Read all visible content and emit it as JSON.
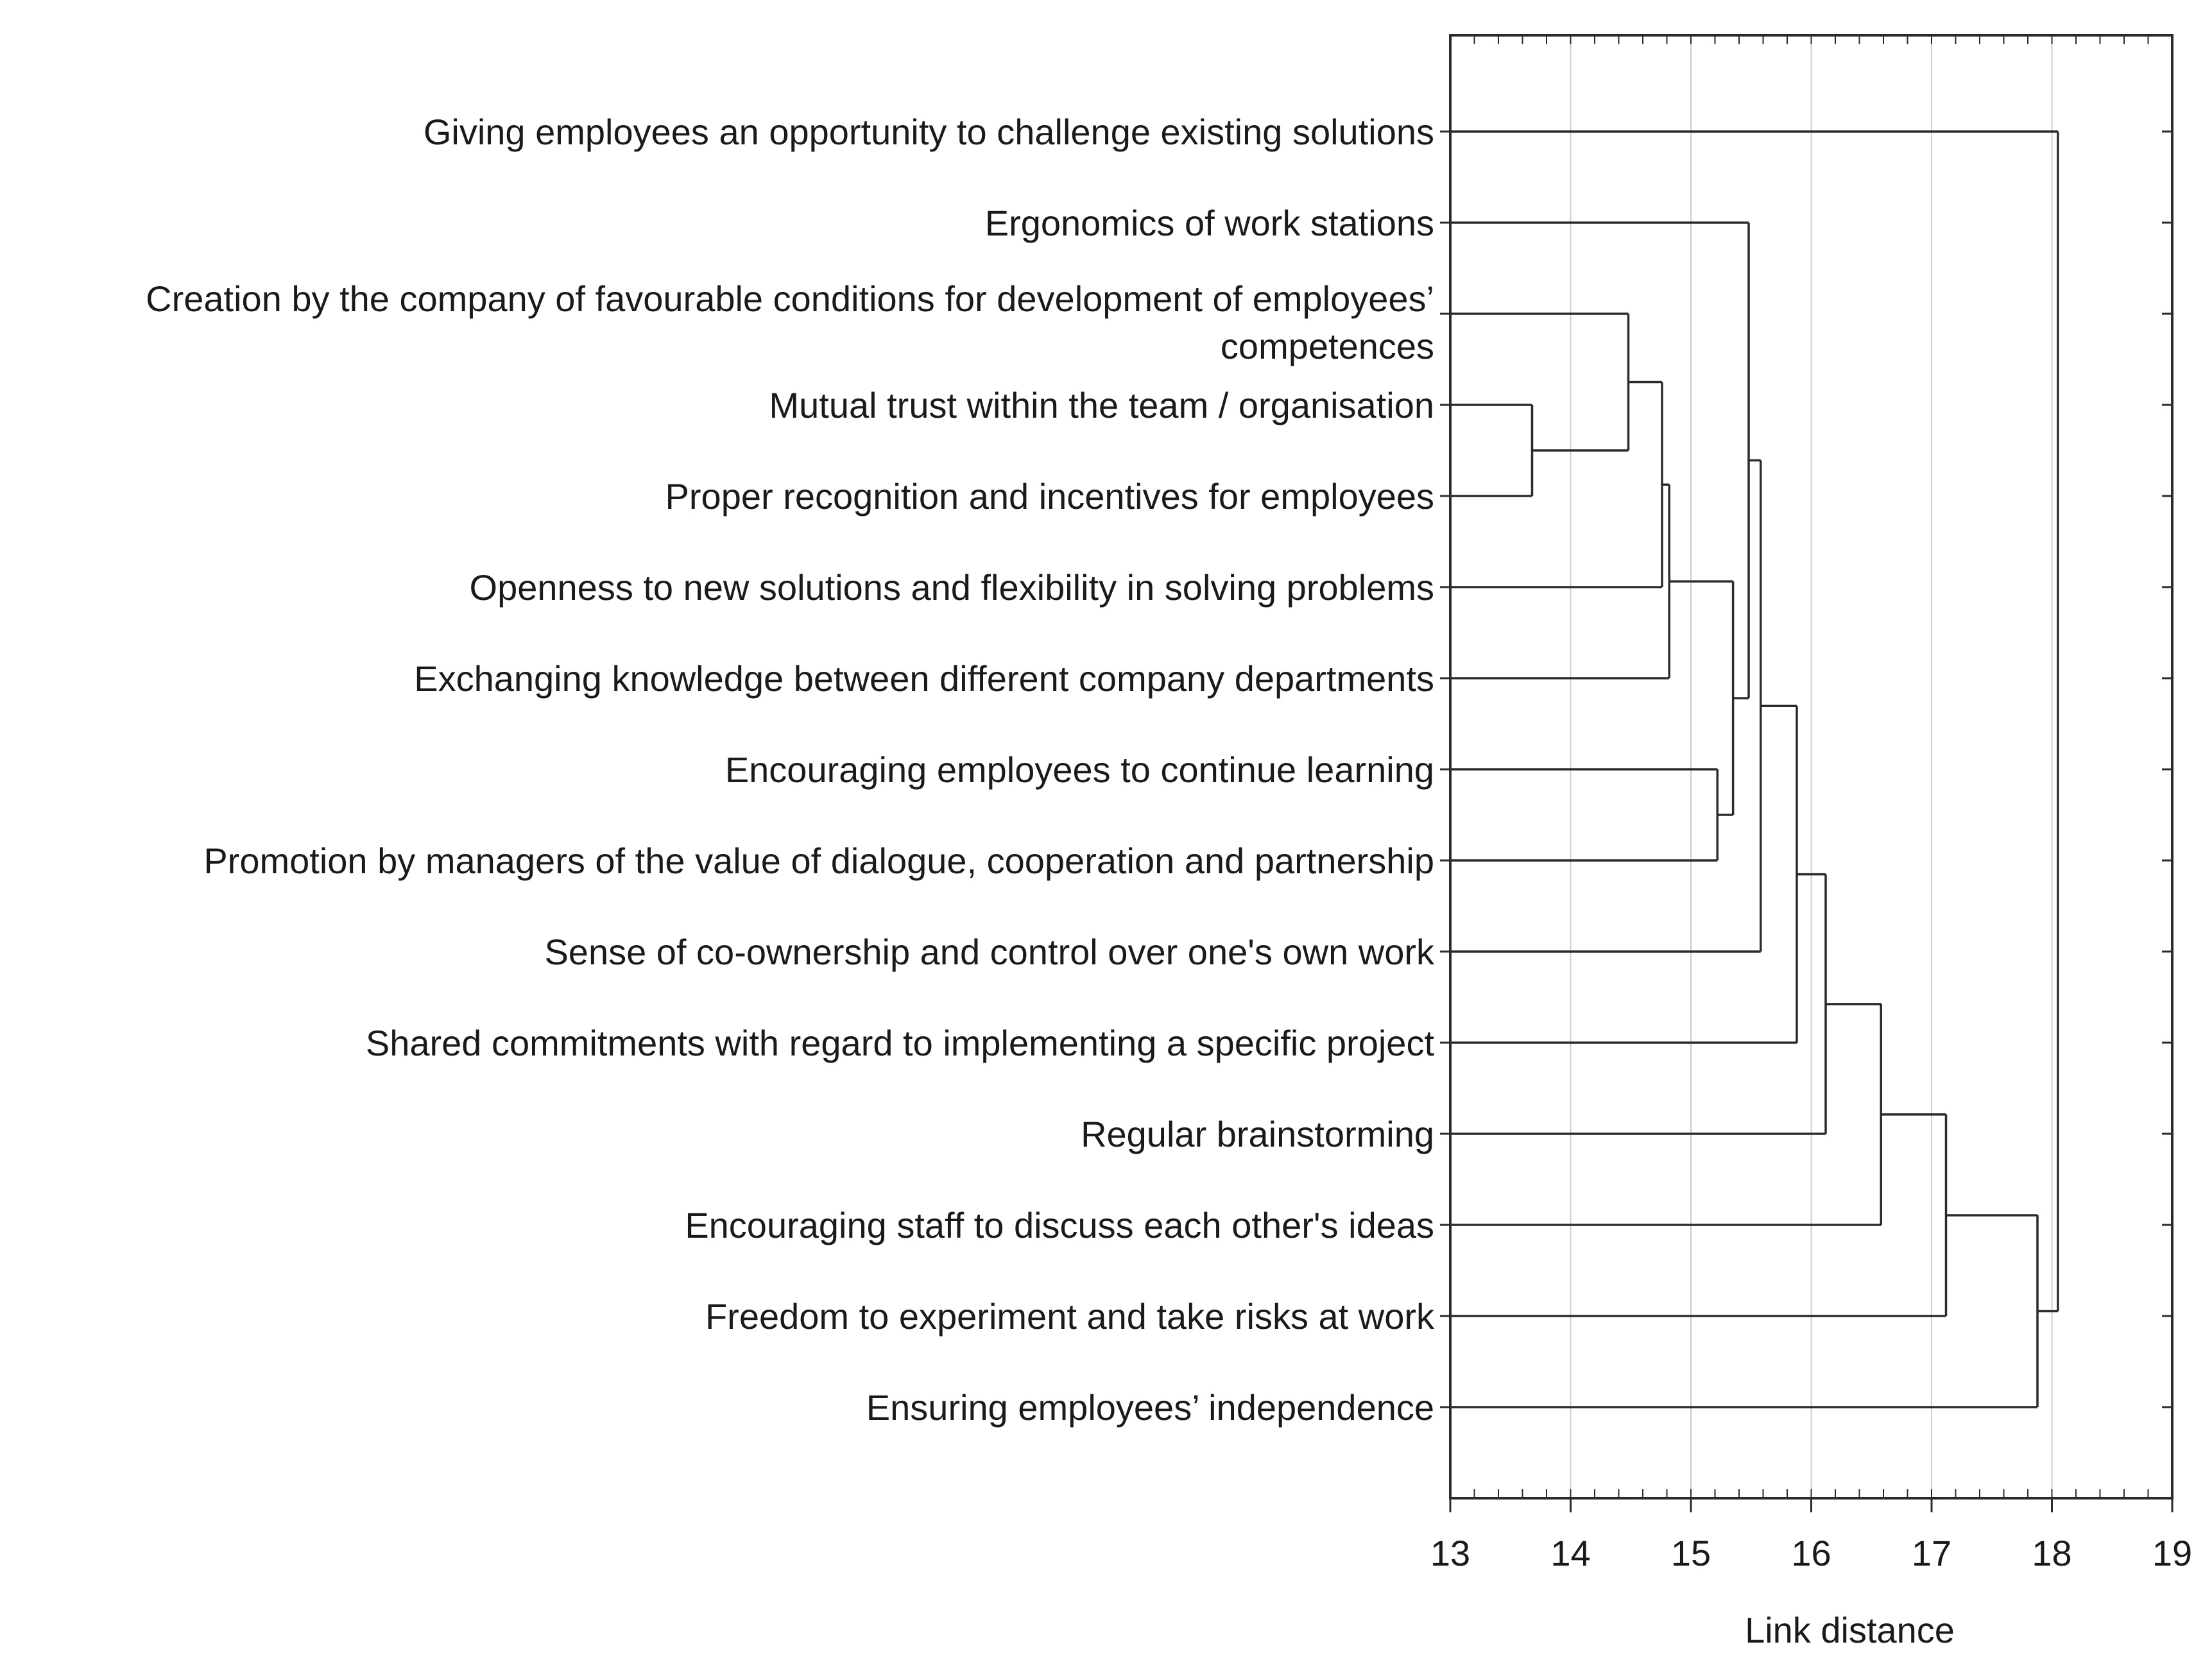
{
  "colors": {
    "line": "#2b2b2b",
    "grid": "#cccccc",
    "text": "#1a1a1a",
    "background": "#ffffff"
  },
  "chart_data": {
    "type": "dendrogram",
    "title": "",
    "xlabel": "Link distance",
    "ylabel": "",
    "xlim": [
      13,
      19
    ],
    "x_ticks": [
      "13",
      "14",
      "15",
      "16",
      "17",
      "18",
      "19"
    ],
    "grid": "vertical",
    "leaves": [
      {
        "label": [
          "Giving employees an opportunity to challenge existing solutions"
        ]
      },
      {
        "label": [
          "Ergonomics of work stations"
        ]
      },
      {
        "label": [
          "Creation by the company of favourable conditions for development of employees’",
          "competences"
        ]
      },
      {
        "label": [
          "Mutual trust within the team / organisation"
        ]
      },
      {
        "label": [
          "Proper recognition and incentives for employees"
        ]
      },
      {
        "label": [
          "Openness to new solutions and flexibility in solving problems"
        ]
      },
      {
        "label": [
          "Exchanging knowledge between different company departments"
        ]
      },
      {
        "label": [
          "Encouraging employees to continue learning"
        ]
      },
      {
        "label": [
          "Promotion by managers of the value of dialogue, cooperation and partnership"
        ]
      },
      {
        "label": [
          "Sense of co-ownership and control over one's own work"
        ]
      },
      {
        "label": [
          "Shared commitments with regard to implementing a specific project"
        ]
      },
      {
        "label": [
          "Regular brainstorming"
        ]
      },
      {
        "label": [
          "Encouraging staff to discuss each other's ideas"
        ]
      },
      {
        "label": [
          "Freedom to experiment and take risks at work"
        ]
      },
      {
        "label": [
          "Ensuring employees’ independence"
        ]
      }
    ],
    "merges": [
      {
        "id": "A",
        "children": [
          3,
          4
        ],
        "distance": 13.68
      },
      {
        "id": "B",
        "children": [
          2,
          "A"
        ],
        "distance": 14.48
      },
      {
        "id": "C",
        "children": [
          "B",
          5
        ],
        "distance": 14.76
      },
      {
        "id": "D",
        "children": [
          "C",
          6
        ],
        "distance": 14.82
      },
      {
        "id": "E",
        "children": [
          7,
          8
        ],
        "distance": 15.22
      },
      {
        "id": "F",
        "children": [
          "D",
          "E"
        ],
        "distance": 15.35
      },
      {
        "id": "G",
        "children": [
          1,
          "F"
        ],
        "distance": 15.48
      },
      {
        "id": "H",
        "children": [
          "G",
          9
        ],
        "distance": 15.58
      },
      {
        "id": "I",
        "children": [
          "H",
          10
        ],
        "distance": 15.88
      },
      {
        "id": "J",
        "children": [
          "I",
          11
        ],
        "distance": 16.12
      },
      {
        "id": "K",
        "children": [
          "J",
          12
        ],
        "distance": 16.58
      },
      {
        "id": "L",
        "children": [
          "K",
          13
        ],
        "distance": 17.12
      },
      {
        "id": "M",
        "children": [
          "L",
          14
        ],
        "distance": 17.88
      },
      {
        "id": "N",
        "children": [
          0,
          "M"
        ],
        "distance": 18.05
      }
    ]
  }
}
